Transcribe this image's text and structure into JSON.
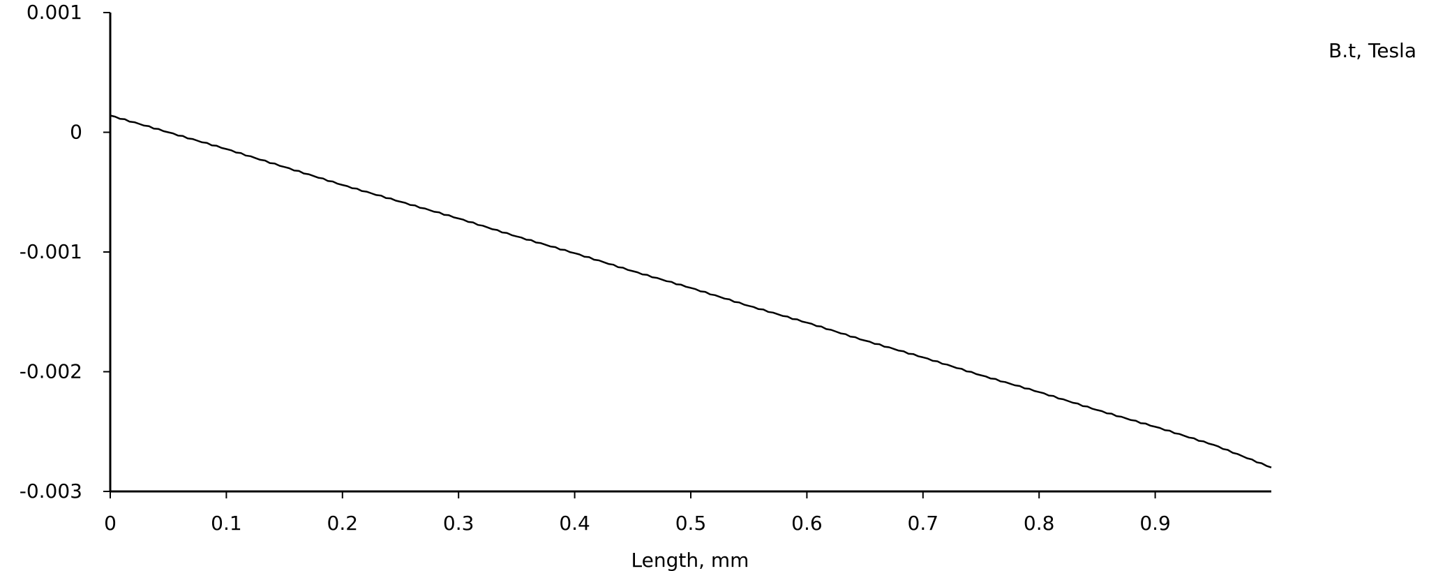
{
  "chart_data": {
    "type": "line",
    "title": "",
    "xlabel": "Length, mm",
    "ylabel": "",
    "xlim": [
      0,
      1
    ],
    "ylim": [
      -0.003,
      0.001
    ],
    "grid": false,
    "legend": "none",
    "x_ticks": [
      "0",
      "0.1",
      "0.2",
      "0.3",
      "0.4",
      "0.5",
      "0.6",
      "0.7",
      "0.8",
      "0.9"
    ],
    "x_tick_values": [
      0,
      0.1,
      0.2,
      0.3,
      0.4,
      0.5,
      0.6,
      0.7,
      0.8,
      0.9
    ],
    "y_ticks": [
      "0.001",
      "0",
      "-0.001",
      "-0.002",
      "-0.003"
    ],
    "y_tick_values": [
      0.001,
      0,
      -0.001,
      -0.002,
      -0.003
    ],
    "annotations": [
      {
        "text": "B.t, Tesla",
        "position": "top-right"
      }
    ],
    "series": [
      {
        "color": "#000000",
        "x": [
          0,
          0.05,
          0.1,
          0.15,
          0.2,
          0.25,
          0.3,
          0.35,
          0.4,
          0.45,
          0.5,
          0.55,
          0.6,
          0.65,
          0.7,
          0.75,
          0.8,
          0.85,
          0.9,
          0.95,
          1.0
        ],
        "y": [
          0.00014,
          0.0,
          -0.00014,
          -0.00029,
          -0.00044,
          -0.00058,
          -0.00072,
          -0.00087,
          -0.00101,
          -0.00116,
          -0.0013,
          -0.00145,
          -0.00159,
          -0.00174,
          -0.00188,
          -0.00203,
          -0.00217,
          -0.00232,
          -0.00246,
          -0.00261,
          -0.0028
        ]
      }
    ]
  }
}
